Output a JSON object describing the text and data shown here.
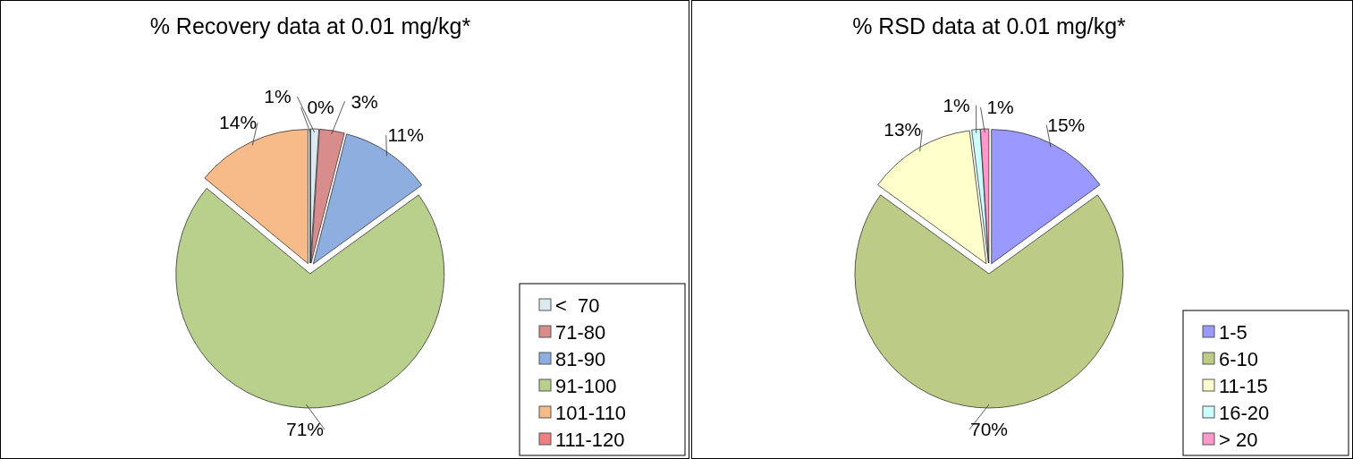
{
  "chart_data": [
    {
      "type": "pie",
      "title": "% Recovery data at 0.01 mg/kg*",
      "categories": [
        "<  70",
        "71-80",
        "81-90",
        "91-100",
        "101-110",
        "111-120"
      ],
      "values": [
        1,
        3,
        11,
        71,
        14,
        0
      ],
      "colors": [
        "#dce9ee",
        "#d98c8c",
        "#8faee0",
        "#b9cf8c",
        "#f7bb8a",
        "#f07f82"
      ],
      "value_labels": [
        "1%",
        "3%",
        "11%",
        "71%",
        "14%",
        "0%"
      ],
      "legend": "bottom right"
    },
    {
      "type": "pie",
      "title": "% RSD data at 0.01 mg/kg*",
      "categories": [
        "1-5",
        "6-10",
        "11-15",
        "16-20",
        "> 20"
      ],
      "values": [
        15,
        70,
        13,
        1,
        1
      ],
      "colors": [
        "#9999ff",
        "#bccc87",
        "#ffffcc",
        "#ccffff",
        "#ff99cc"
      ],
      "value_labels": [
        "15%",
        "70%",
        "13%",
        "1%",
        "1%"
      ],
      "legend": "bottom right"
    }
  ]
}
